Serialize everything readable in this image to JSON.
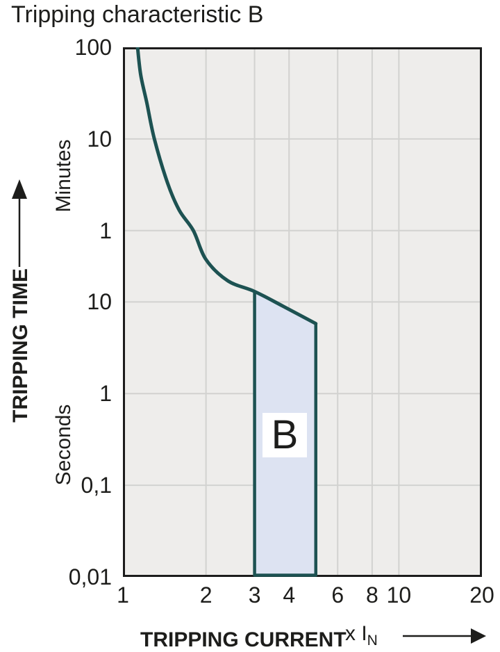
{
  "title": "Tripping characteristic B",
  "colors": {
    "curve": "#1d5252",
    "band_fill": "#dde3f2",
    "plot_bg": "#eeedeb",
    "grid": "#d2d2d0",
    "border": "#1c1c1c",
    "text": "#1d1d1b",
    "band_label_bg": "#ffffff"
  },
  "chart_data": {
    "type": "line",
    "title": "Tripping characteristic B",
    "legend": "none",
    "grid": "on",
    "x_axis": {
      "title": "TRIPPING CURRENT",
      "multiplier_label": "x I",
      "multiplier_subscript": "N",
      "scale": "log",
      "range": [
        1,
        20
      ],
      "ticks": [
        1,
        2,
        3,
        4,
        6,
        8,
        10,
        20
      ],
      "tick_labels": [
        "1",
        "2",
        "3",
        "4",
        "6",
        "8",
        "10",
        "20"
      ],
      "gridlines": [
        2,
        3,
        4,
        6,
        8,
        10
      ]
    },
    "y_axis": {
      "title": "TRIPPING TIME",
      "scale": "log",
      "unit_labels": {
        "upper": "Minutes",
        "lower": "Seconds"
      },
      "range_seconds": [
        0.01,
        6000
      ],
      "ticks": [
        {
          "label": "100",
          "seconds": 6000,
          "unit": "minutes"
        },
        {
          "label": "10",
          "seconds": 600,
          "unit": "minutes"
        },
        {
          "label": "1",
          "seconds": 60,
          "unit": "minutes"
        },
        {
          "label": "10",
          "seconds": 10,
          "unit": "seconds"
        },
        {
          "label": "1",
          "seconds": 1,
          "unit": "seconds"
        },
        {
          "label": "0,1",
          "seconds": 0.1,
          "unit": "seconds"
        },
        {
          "label": "0,01",
          "seconds": 0.01,
          "unit": "seconds"
        }
      ],
      "gridlines_seconds": [
        600,
        60,
        10,
        1,
        0.1
      ]
    },
    "series": [
      {
        "name": "thermal-tripping-curve",
        "points_x_seconds": [
          [
            1.13,
            6000
          ],
          [
            1.16,
            3000
          ],
          [
            1.22,
            1500
          ],
          [
            1.3,
            600
          ],
          [
            1.45,
            200
          ],
          [
            1.6,
            100
          ],
          [
            1.8,
            60
          ],
          [
            2.0,
            29
          ],
          [
            2.4,
            17
          ],
          [
            3.0,
            13
          ],
          [
            3.8,
            9
          ],
          [
            5.0,
            5.8
          ]
        ]
      }
    ],
    "band": {
      "label": "B",
      "x_range": [
        3,
        5
      ],
      "top_points_x_seconds": [
        [
          3.0,
          13
        ],
        [
          3.8,
          9
        ],
        [
          5.0,
          5.8
        ]
      ],
      "bottom_seconds": 0.01
    }
  }
}
